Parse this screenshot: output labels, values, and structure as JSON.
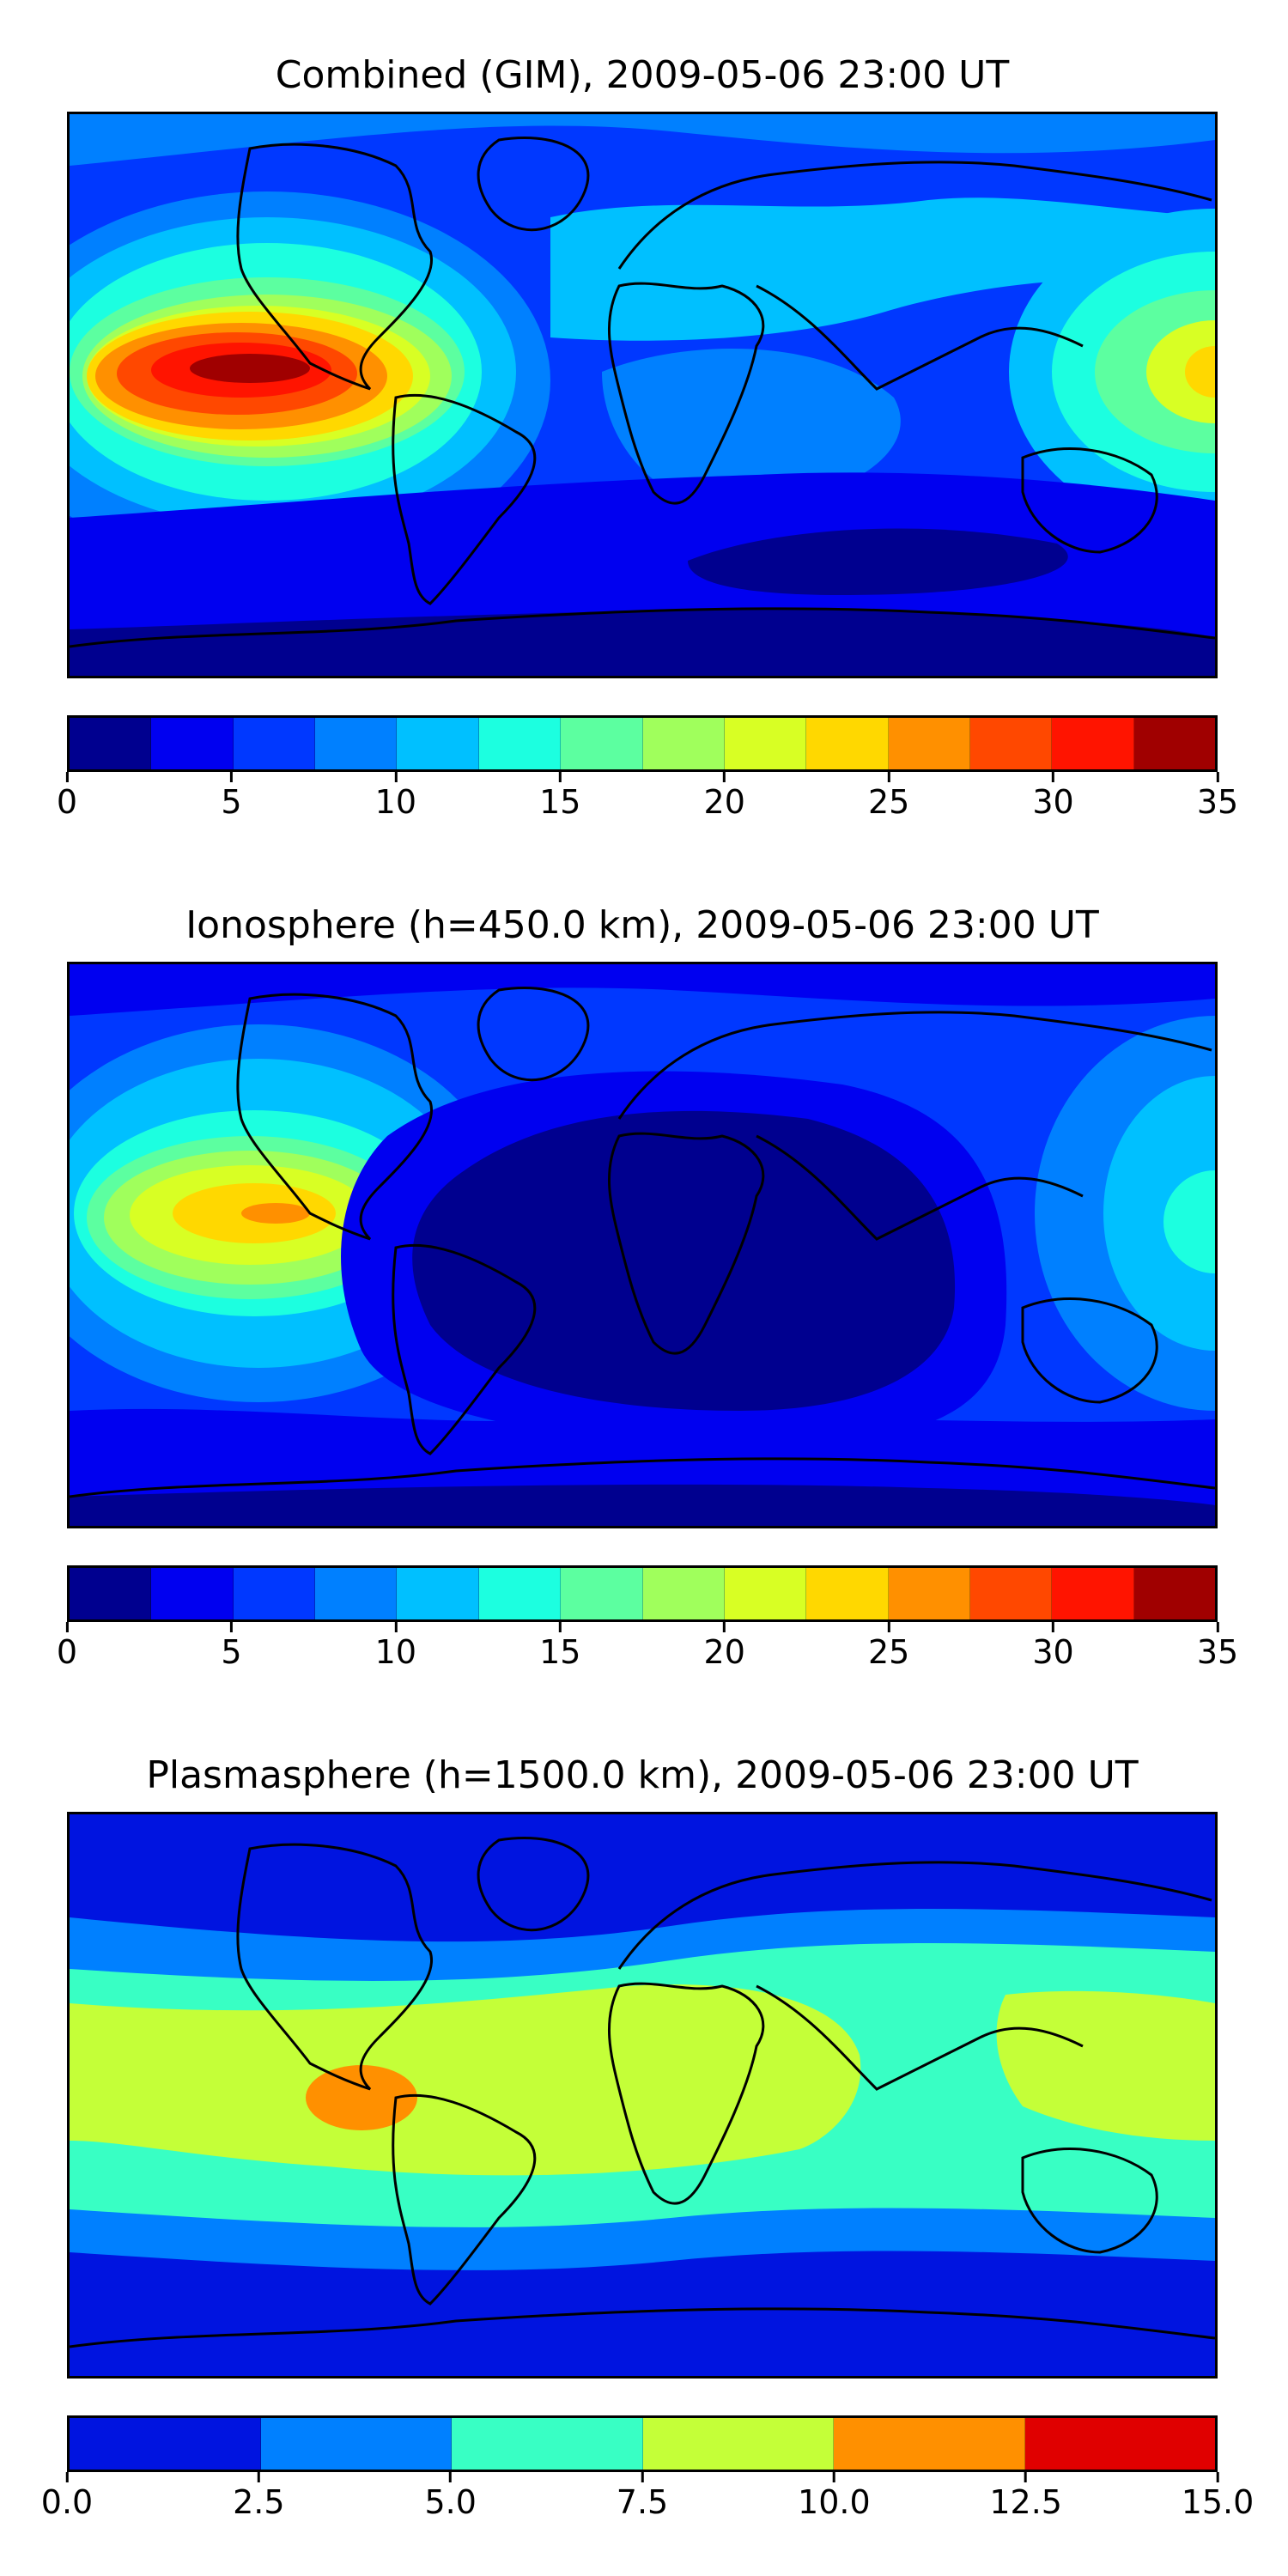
{
  "figure": {
    "panels": [
      {
        "title": "Combined (GIM), 2009-05-06 23:00 UT",
        "colors": [
          "#00008f",
          "#0000f0",
          "#0038ff",
          "#0080ff",
          "#00c0ff",
          "#1cffe0",
          "#5cffa0",
          "#a0ff5c",
          "#d8ff24",
          "#ffd800",
          "#ff9000",
          "#ff4800",
          "#ff1400",
          "#a00000"
        ],
        "ticks": [
          "0",
          "5",
          "10",
          "15",
          "20",
          "25",
          "30",
          "35"
        ],
        "bg_color": "#0038ff"
      },
      {
        "title": "Ionosphere  (h=450.0 km), 2009-05-06 23:00 UT",
        "colors": [
          "#00008f",
          "#0000f0",
          "#0038ff",
          "#0080ff",
          "#00c0ff",
          "#1cffe0",
          "#5cffa0",
          "#a0ff5c",
          "#d8ff24",
          "#ffd800",
          "#ff9000",
          "#ff4800",
          "#ff1400",
          "#a00000"
        ],
        "ticks": [
          "0",
          "5",
          "10",
          "15",
          "20",
          "25",
          "30",
          "35"
        ],
        "bg_color": "#0038ff"
      },
      {
        "title": "Plasmasphere (h=1500.0 km), 2009-05-06 23:00 UT",
        "colors": [
          "#0014e0",
          "#0080ff",
          "#38ffc4",
          "#c4ff38",
          "#ff9000",
          "#e00000"
        ],
        "ticks": [
          "0.0",
          "2.5",
          "5.0",
          "7.5",
          "10.0",
          "12.5",
          "15.0"
        ],
        "bg_color": "#0014e0"
      }
    ]
  }
}
